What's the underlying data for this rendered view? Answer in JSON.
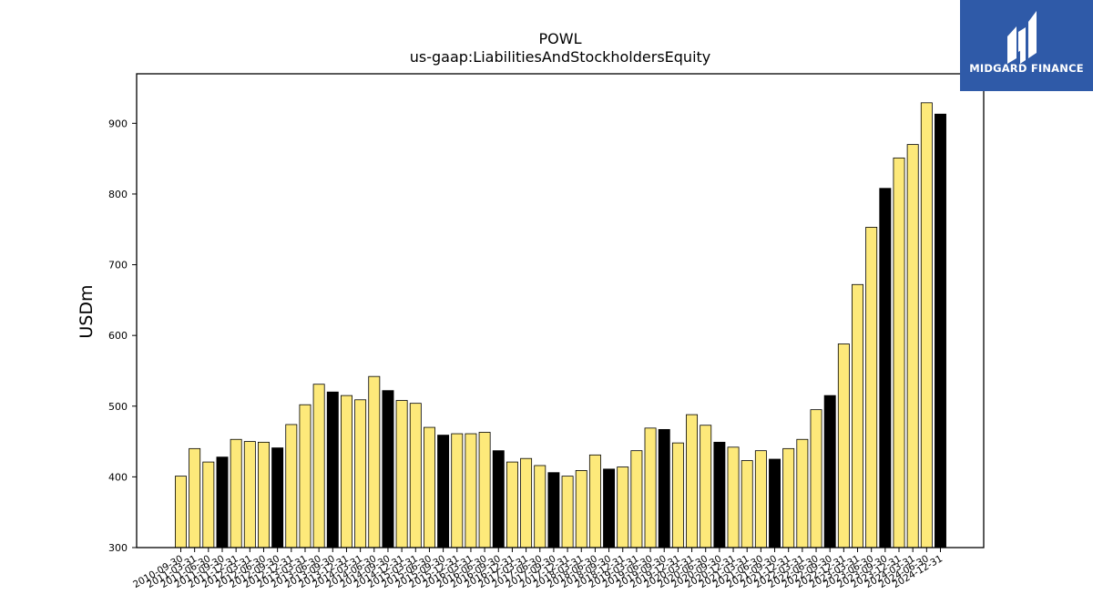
{
  "brand": {
    "name": "MIDGARD FINANCE",
    "color": "#2f5aa8"
  },
  "chart_data": {
    "type": "bar",
    "title": "POWL",
    "subtitle": "us-gaap:LiabilitiesAndStockholdersEquity",
    "xlabel": "",
    "ylabel": "USDm",
    "ylim": [
      300,
      970
    ],
    "yticks": [
      300,
      400,
      500,
      600,
      700,
      800,
      900
    ],
    "grid": false,
    "colors": {
      "quarter": "#fde97a",
      "year_end": "#000000",
      "edge": "#000000"
    },
    "categories": [
      "2010-09-30",
      "2011-03-31",
      "2011-06-30",
      "2011-09-30",
      "2011-12-31",
      "2012-03-31",
      "2012-06-30",
      "2012-09-30",
      "2012-12-31",
      "2013-03-31",
      "2013-06-30",
      "2013-09-30",
      "2013-12-31",
      "2014-03-31",
      "2014-06-30",
      "2014-09-30",
      "2014-12-31",
      "2015-03-31",
      "2015-06-30",
      "2015-09-30",
      "2015-12-31",
      "2016-03-31",
      "2016-06-30",
      "2016-09-30",
      "2016-12-31",
      "2017-03-31",
      "2017-06-30",
      "2017-09-30",
      "2017-12-31",
      "2018-03-31",
      "2018-06-30",
      "2018-09-30",
      "2018-12-31",
      "2019-03-31",
      "2019-06-30",
      "2019-09-30",
      "2019-12-31",
      "2020-03-31",
      "2020-06-30",
      "2020-09-30",
      "2020-12-31",
      "2021-03-31",
      "2021-06-30",
      "2021-09-30",
      "2021-12-31",
      "2022-03-31",
      "2022-06-30",
      "2022-09-30",
      "2022-12-31",
      "2023-03-31",
      "2023-06-30",
      "2023-09-30",
      "2023-12-31",
      "2024-03-31",
      "2024-06-30",
      "2024-12-31"
    ],
    "values": [
      401,
      440,
      421,
      428,
      453,
      450,
      449,
      441,
      474,
      502,
      531,
      520,
      515,
      509,
      542,
      522,
      508,
      504,
      470,
      459,
      461,
      461,
      463,
      437,
      421,
      426,
      416,
      406,
      401,
      409,
      431,
      411,
      414,
      437,
      469,
      467,
      448,
      488,
      473,
      449,
      442,
      423,
      437,
      425,
      440,
      453,
      495,
      515,
      588,
      672,
      753,
      808,
      851,
      870,
      929,
      913
    ],
    "year_end": [
      false,
      false,
      false,
      true,
      false,
      false,
      false,
      true,
      false,
      false,
      false,
      true,
      false,
      false,
      false,
      true,
      false,
      false,
      false,
      true,
      false,
      false,
      false,
      true,
      false,
      false,
      false,
      true,
      false,
      false,
      false,
      true,
      false,
      false,
      false,
      true,
      false,
      false,
      false,
      true,
      false,
      false,
      false,
      true,
      false,
      false,
      false,
      true,
      false,
      false,
      false,
      true,
      false,
      false,
      false,
      true
    ]
  }
}
